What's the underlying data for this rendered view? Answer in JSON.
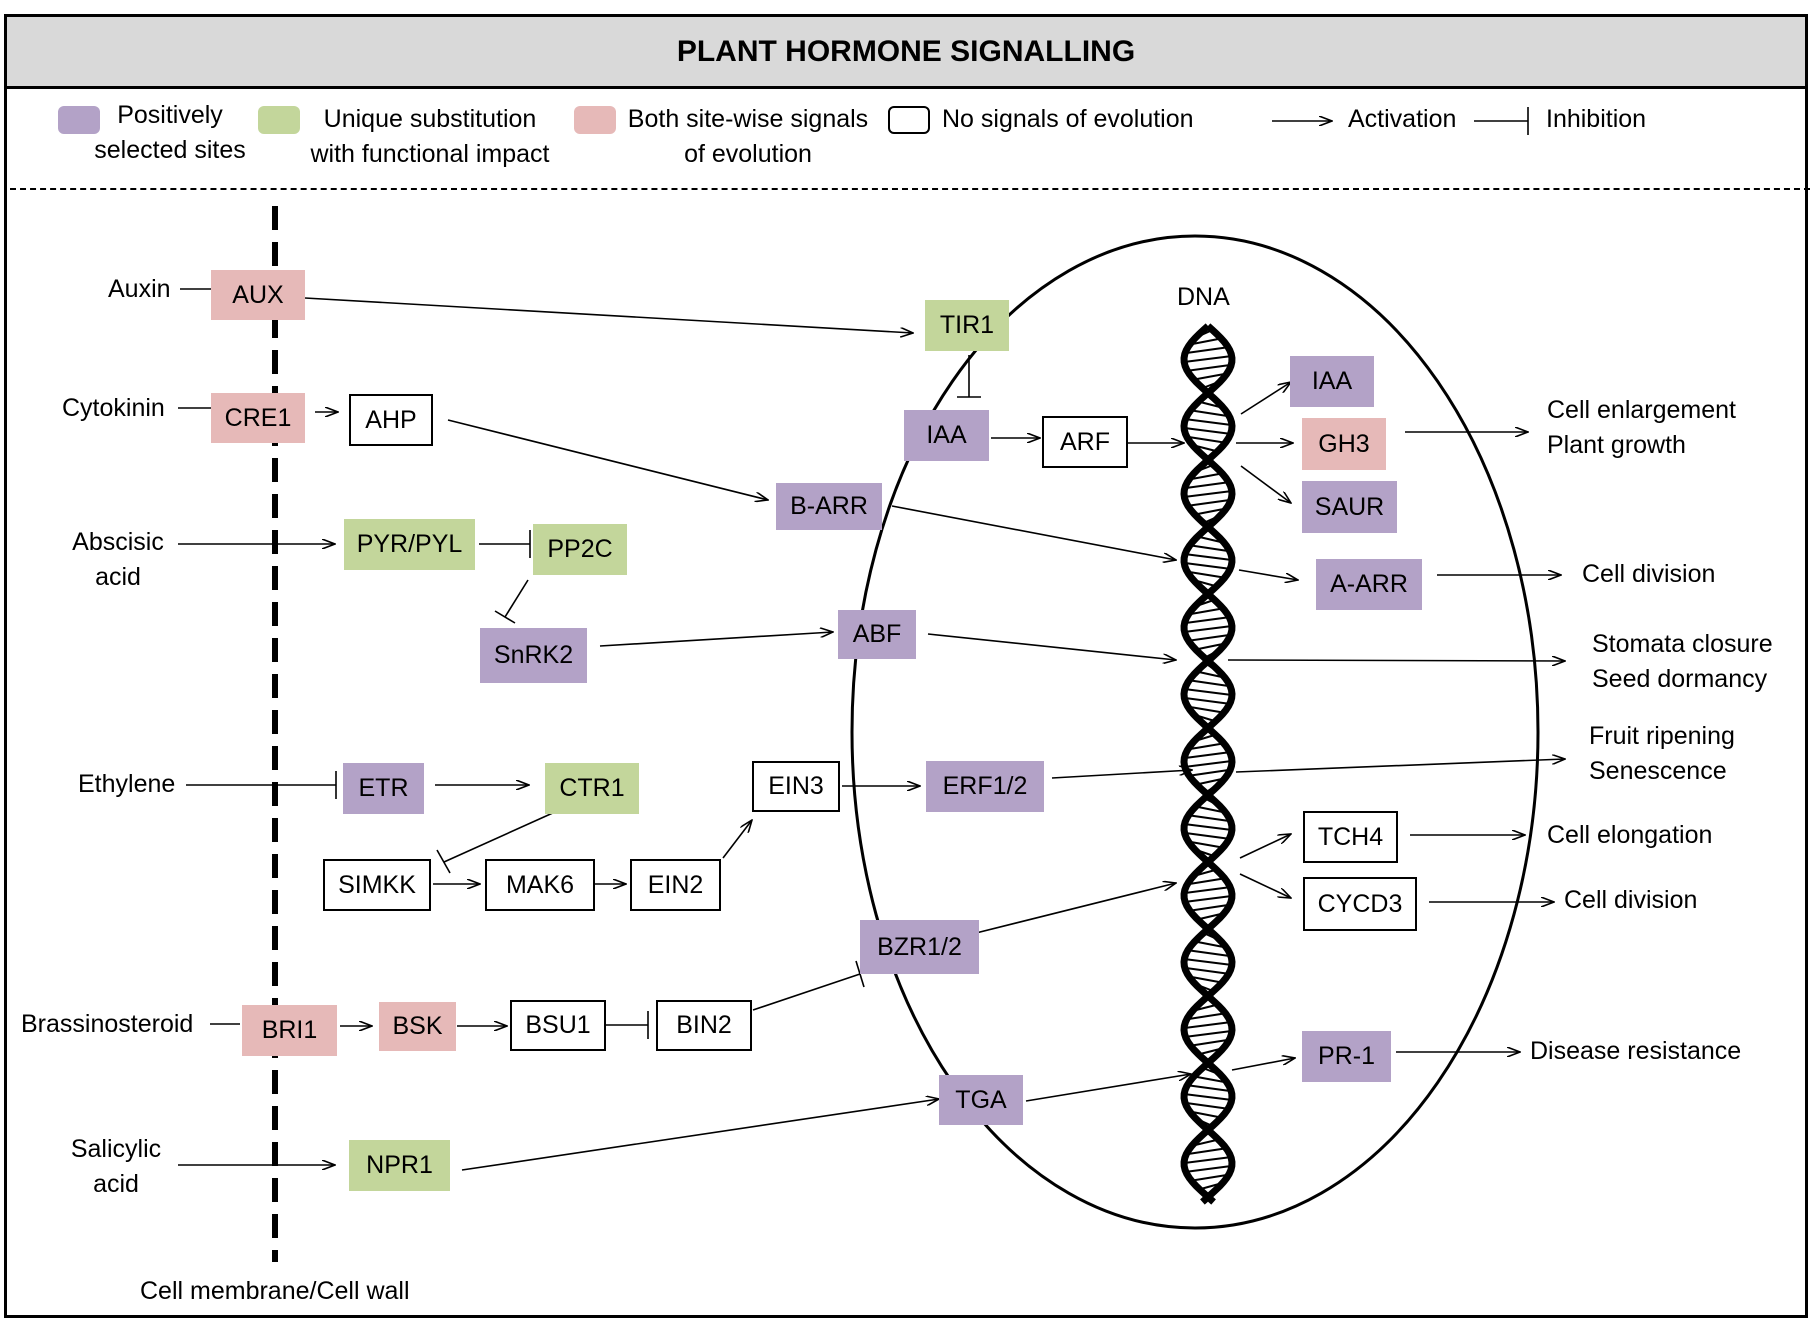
{
  "title": "PLANT HORMONE SIGNALLING",
  "legend": {
    "positive_line1": "Positively",
    "positive_line2": "selected sites",
    "unique_line1": "Unique substitution",
    "unique_line2": "with functional impact",
    "both_line1": "Both site-wise signals",
    "both_line2": "of evolution",
    "none": "No signals of evolution",
    "activation": "Activation",
    "inhibition": "Inhibition"
  },
  "colors": {
    "positively_selected": "#b3a2c7",
    "unique_substitution": "#c3d69b",
    "both_signals": "#e6b9b8",
    "no_signal": "#ffffff",
    "header_bg": "#d9d9d9"
  },
  "hormones": {
    "auxin": "Auxin",
    "cytokinin": "Cytokinin",
    "abscisic1": "Abscisic",
    "abscisic2": "acid",
    "ethylene": "Ethylene",
    "brassinosteroid": "Brassinosteroid",
    "salicylic1": "Salicylic",
    "salicylic2": "acid"
  },
  "nodes": {
    "aux": "AUX",
    "cre1": "CRE1",
    "ahp": "AHP",
    "pyr": "PYR/PYL",
    "pp2c": "PP2C",
    "snrk2": "SnRK2",
    "etr": "ETR",
    "ctr1": "CTR1",
    "simkk": "SIMKK",
    "mak6": "MAK6",
    "ein2": "EIN2",
    "bri1": "BRI1",
    "bsk": "BSK",
    "bsu1": "BSU1",
    "bin2": "BIN2",
    "npr1": "NPR1",
    "tir1": "TIR1",
    "iaa1": "IAA",
    "arf": "ARF",
    "barr": "B-ARR",
    "abf": "ABF",
    "ein3": "EIN3",
    "erf": "ERF1/2",
    "bzr": "BZR1/2",
    "tga": "TGA",
    "iaa2": "IAA",
    "gh3": "GH3",
    "saur": "SAUR",
    "aarr": "A-ARR",
    "tch4": "TCH4",
    "cycd3": "CYCD3",
    "pr1": "PR-1"
  },
  "dna_label": "DNA",
  "outcomes": {
    "cell_enlargement": "Cell enlargement",
    "plant_growth": "Plant growth",
    "cell_division1": "Cell division",
    "stomata": "Stomata closure",
    "seed": "Seed dormancy",
    "fruit": "Fruit ripening",
    "senescence": "Senescence",
    "cell_elongation": "Cell elongation",
    "cell_division2": "Cell division",
    "disease": "Disease resistance"
  },
  "membrane_label": "Cell membrane/Cell wall"
}
